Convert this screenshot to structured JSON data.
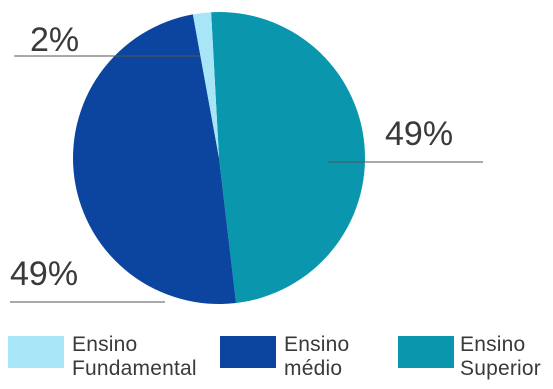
{
  "chart_data": {
    "type": "pie",
    "title": "",
    "slices": [
      {
        "name": "Ensino Superior",
        "value": 49,
        "label": "49%",
        "color": "#0a97ae"
      },
      {
        "name": "Ensino médio",
        "value": 49,
        "label": "49%",
        "color": "#0b45a0"
      },
      {
        "name": "Ensino Fundamental",
        "value": 2,
        "label": "2%",
        "color": "#a8e6f7"
      }
    ],
    "legend": {
      "placement": "bottom",
      "items": [
        {
          "label": "Ensino\nFundamental",
          "color": "#a8e6f7"
        },
        {
          "label": "Ensino\nmédio",
          "color": "#0b45a0"
        },
        {
          "label": "Ensino\nSuperior",
          "color": "#0a97ae"
        }
      ]
    }
  }
}
